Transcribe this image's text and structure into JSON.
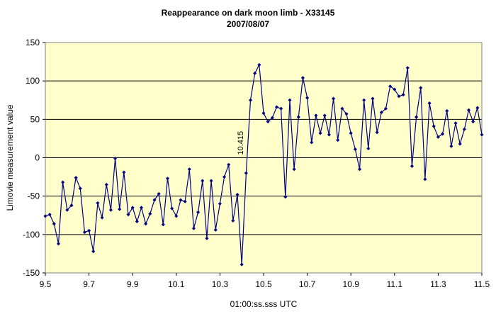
{
  "chart_data": {
    "type": "line",
    "title": "Reappearance on dark moon limb - X33145",
    "subtitle": "2007/08/07",
    "xlabel": "01:00:ss.sss UTC",
    "ylabel": "Limovie measurement value",
    "xlim": [
      9.5,
      11.5
    ],
    "ylim": [
      -150,
      150
    ],
    "xticks": [
      "9.5",
      "9.7",
      "9.9",
      "10.1",
      "10.3",
      "10.5",
      "10.7",
      "10.9",
      "11.1",
      "11.3",
      "11.5"
    ],
    "yticks": [
      "150",
      "100",
      "50",
      "0",
      "-50",
      "-100",
      "-150"
    ],
    "grid": "horizontal",
    "plot_background": "#ffffcc",
    "line_color": "#000080",
    "annotation": {
      "text": "10.415",
      "x": 10.415,
      "y": 0
    },
    "x": [
      9.5,
      9.52,
      9.54,
      9.56,
      9.58,
      9.6,
      9.62,
      9.64,
      9.66,
      9.68,
      9.7,
      9.72,
      9.74,
      9.76,
      9.78,
      9.8,
      9.82,
      9.84,
      9.86,
      9.88,
      9.9,
      9.92,
      9.94,
      9.96,
      9.98,
      10.0,
      10.02,
      10.04,
      10.06,
      10.08,
      10.1,
      10.12,
      10.14,
      10.16,
      10.18,
      10.2,
      10.22,
      10.24,
      10.26,
      10.28,
      10.3,
      10.32,
      10.34,
      10.36,
      10.38,
      10.4,
      10.42,
      10.44,
      10.46,
      10.48,
      10.5,
      10.52,
      10.54,
      10.56,
      10.58,
      10.6,
      10.62,
      10.64,
      10.66,
      10.68,
      10.7,
      10.72,
      10.74,
      10.76,
      10.78,
      10.8,
      10.82,
      10.84,
      10.86,
      10.88,
      10.9,
      10.92,
      10.94,
      10.96,
      10.98,
      11.0,
      11.02,
      11.04,
      11.06,
      11.08,
      11.1,
      11.12,
      11.14,
      11.16,
      11.18,
      11.2,
      11.22,
      11.24,
      11.26,
      11.28,
      11.3,
      11.32,
      11.34,
      11.36,
      11.38,
      11.4,
      11.42,
      11.44,
      11.46,
      11.48,
      11.5
    ],
    "y": [
      -76,
      -74,
      -86,
      -112,
      -32,
      -68,
      -62,
      -26,
      -40,
      -97,
      -95,
      -122,
      -59,
      -78,
      -35,
      -68,
      -1,
      -67,
      -19,
      -74,
      -65,
      -83,
      -65,
      -86,
      -73,
      -55,
      -47,
      -87,
      -27,
      -66,
      -76,
      -55,
      -57,
      -15,
      -92,
      -71,
      -30,
      -105,
      -30,
      -94,
      -60,
      -25,
      -9,
      -82,
      -48,
      -139,
      -20,
      75,
      110,
      121,
      58,
      47,
      52,
      66,
      64,
      -51,
      75,
      -15,
      53,
      104,
      78,
      20,
      55,
      32,
      55,
      30,
      77,
      23,
      64,
      57,
      32,
      11,
      -15,
      75,
      12,
      77,
      33,
      59,
      64,
      93,
      89,
      80,
      82,
      117,
      -11,
      53,
      91,
      -28,
      71,
      41,
      27,
      31,
      61,
      15,
      45,
      18,
      37,
      62,
      47,
      65,
      30
    ]
  }
}
